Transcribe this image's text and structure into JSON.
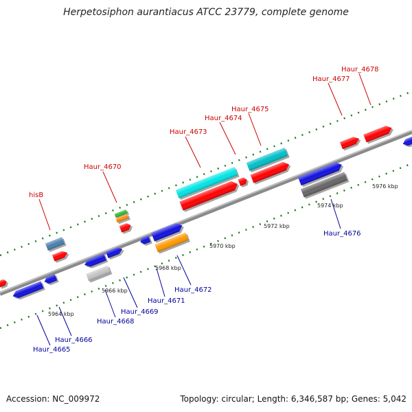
{
  "title": "Herpetosiphon aurantiacus ATCC 23779, complete genome",
  "footer": {
    "accession": "Accession: NC_009972",
    "topology": "Topology: circular; Length: 6,346,587 bp; Genes: 5,042"
  },
  "colors": {
    "forward_label": "#cc0000",
    "reverse_label": "#000099",
    "backbone": "#808080",
    "tick": "#1a7a1a"
  },
  "scale_labels": [
    "5964 kbp",
    "5966 kbp",
    "5968 kbp",
    "5970 kbp",
    "5972 kbp",
    "5974 kbp",
    "5976 kbp"
  ],
  "genes_top": [
    "hisB",
    "Haur_4670",
    "Haur_4673",
    "Haur_4674",
    "Haur_4675",
    "Haur_4677",
    "Haur_4678"
  ],
  "genes_bottom": [
    "Haur_4665",
    "Haur_4666",
    "Haur_4668",
    "Haur_4669",
    "Haur_4671",
    "Haur_4672",
    "Haur_4676"
  ]
}
